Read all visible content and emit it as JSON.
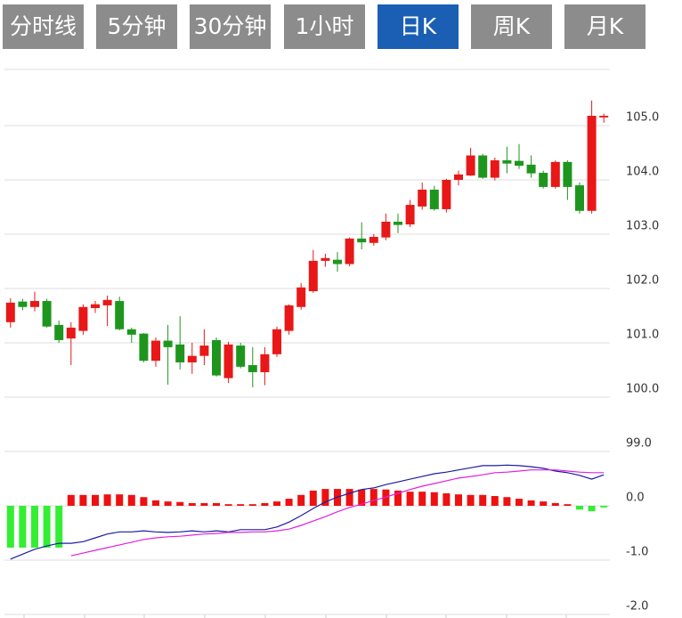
{
  "tabs": [
    "分时线",
    "5分钟",
    "30分钟",
    "1小时",
    "日K",
    "周K",
    "月K"
  ],
  "active_tab": 4,
  "chart_data": [
    {
      "type": "candlestick",
      "up_color": "#e81818",
      "down_color": "#1e961e",
      "open": [
        101.38,
        101.76,
        101.66,
        101.77,
        101.33,
        101.08,
        101.22,
        101.64,
        101.69,
        101.77,
        101.25,
        101.17,
        100.67,
        101.04,
        100.97,
        100.64,
        100.76,
        101.05,
        100.35,
        100.95,
        100.59,
        100.46,
        100.79,
        101.22,
        101.66,
        101.95,
        102.51,
        102.53,
        102.45,
        102.92,
        102.84,
        102.94,
        103.23,
        103.18,
        103.51,
        103.82,
        103.46,
        104.0,
        104.08,
        104.45,
        104.04,
        104.36,
        104.35,
        104.28,
        104.13,
        103.87,
        104.33,
        103.9,
        103.43,
        105.15
      ],
      "close": [
        101.74,
        101.66,
        101.77,
        101.3,
        101.05,
        101.28,
        101.66,
        101.71,
        101.79,
        101.25,
        101.15,
        100.67,
        101.04,
        100.92,
        100.64,
        100.76,
        100.95,
        100.4,
        100.97,
        100.56,
        100.46,
        100.79,
        101.25,
        101.69,
        102.02,
        102.51,
        102.56,
        102.45,
        102.92,
        102.85,
        102.95,
        103.23,
        103.17,
        103.54,
        103.82,
        103.46,
        104.0,
        104.1,
        104.45,
        104.04,
        104.36,
        104.3,
        104.26,
        104.12,
        103.87,
        104.33,
        103.87,
        103.43,
        105.18,
        105.18
      ],
      "high": [
        101.82,
        101.81,
        101.94,
        101.81,
        101.41,
        101.38,
        101.71,
        101.77,
        101.87,
        101.85,
        101.28,
        101.18,
        101.1,
        101.33,
        101.49,
        101.0,
        101.25,
        101.1,
        101.02,
        101.0,
        100.92,
        100.92,
        101.3,
        101.71,
        102.1,
        102.71,
        102.64,
        102.67,
        102.94,
        103.22,
        103.0,
        103.38,
        103.38,
        103.63,
        103.95,
        103.89,
        104.02,
        104.17,
        104.59,
        104.48,
        104.41,
        104.61,
        104.66,
        104.45,
        104.17,
        104.36,
        104.36,
        103.95,
        105.46,
        105.22
      ],
      "low": [
        101.28,
        101.6,
        101.58,
        101.28,
        101.0,
        100.59,
        101.15,
        101.55,
        101.31,
        101.23,
        101.0,
        100.64,
        100.56,
        100.23,
        100.51,
        100.43,
        100.59,
        100.38,
        100.26,
        100.53,
        100.18,
        100.22,
        100.74,
        101.15,
        101.61,
        101.92,
        102.4,
        102.31,
        102.41,
        102.72,
        102.79,
        102.89,
        103.02,
        103.13,
        103.45,
        103.43,
        103.4,
        103.9,
        104.07,
        104.02,
        103.99,
        104.12,
        104.2,
        104.04,
        103.84,
        103.84,
        103.63,
        103.38,
        103.38,
        105.05
      ],
      "ylim": [
        99,
        106
      ],
      "yticks": [
        {
          "value": 99,
          "label": "99.0"
        },
        {
          "value": 100,
          "label": "100.0"
        },
        {
          "value": 101,
          "label": "101.0"
        },
        {
          "value": 102,
          "label": "102.0"
        },
        {
          "value": 103,
          "label": "103.0"
        },
        {
          "value": 104,
          "label": "104.0"
        },
        {
          "value": 105,
          "label": "105.0"
        }
      ],
      "grid": true
    },
    {
      "type": "macd",
      "bar_up_color": "#ee1111",
      "bar_down_color": "#33ee33",
      "histogram": [
        -0.77,
        -0.77,
        -0.77,
        -0.77,
        -0.77,
        0.2,
        0.2,
        0.2,
        0.21,
        0.21,
        0.2,
        0.16,
        0.1,
        0.08,
        0.07,
        0.05,
        0.05,
        0.05,
        0.03,
        0.03,
        0.03,
        0.05,
        0.08,
        0.13,
        0.2,
        0.28,
        0.31,
        0.31,
        0.31,
        0.3,
        0.31,
        0.3,
        0.28,
        0.26,
        0.26,
        0.25,
        0.23,
        0.21,
        0.2,
        0.2,
        0.18,
        0.16,
        0.13,
        0.1,
        0.08,
        0.05,
        0.03,
        -0.07,
        -0.1,
        -0.03
      ],
      "series": [
        {
          "color": "#1c1ca0",
          "values": [
            -0.98,
            -0.89,
            -0.8,
            -0.74,
            -0.69,
            -0.69,
            -0.66,
            -0.59,
            -0.52,
            -0.48,
            -0.48,
            -0.46,
            -0.48,
            -0.49,
            -0.48,
            -0.46,
            -0.48,
            -0.46,
            -0.48,
            -0.44,
            -0.44,
            -0.44,
            -0.39,
            -0.3,
            -0.18,
            -0.05,
            0.07,
            0.16,
            0.23,
            0.3,
            0.33,
            0.39,
            0.44,
            0.49,
            0.54,
            0.59,
            0.62,
            0.66,
            0.7,
            0.74,
            0.74,
            0.75,
            0.74,
            0.72,
            0.69,
            0.64,
            0.61,
            0.56,
            0.49,
            0.57
          ]
        },
        {
          "color": "#e020e0",
          "values": [
            null,
            null,
            null,
            null,
            null,
            -0.92,
            -0.87,
            -0.82,
            -0.77,
            -0.72,
            -0.67,
            -0.62,
            -0.59,
            -0.57,
            -0.56,
            -0.54,
            -0.52,
            -0.51,
            -0.49,
            -0.49,
            -0.48,
            -0.48,
            -0.46,
            -0.43,
            -0.36,
            -0.28,
            -0.2,
            -0.11,
            -0.03,
            0.03,
            0.1,
            0.16,
            0.23,
            0.3,
            0.36,
            0.41,
            0.46,
            0.51,
            0.54,
            0.57,
            0.61,
            0.62,
            0.64,
            0.66,
            0.66,
            0.66,
            0.64,
            0.62,
            0.61,
            0.61
          ]
        }
      ],
      "ylim": [
        -2,
        1
      ],
      "yticks": [
        {
          "value": 0,
          "label": "0.0"
        },
        {
          "value": -1,
          "label": "-1.0"
        },
        {
          "value": -2,
          "label": "-2.0"
        }
      ],
      "grid": true
    }
  ]
}
